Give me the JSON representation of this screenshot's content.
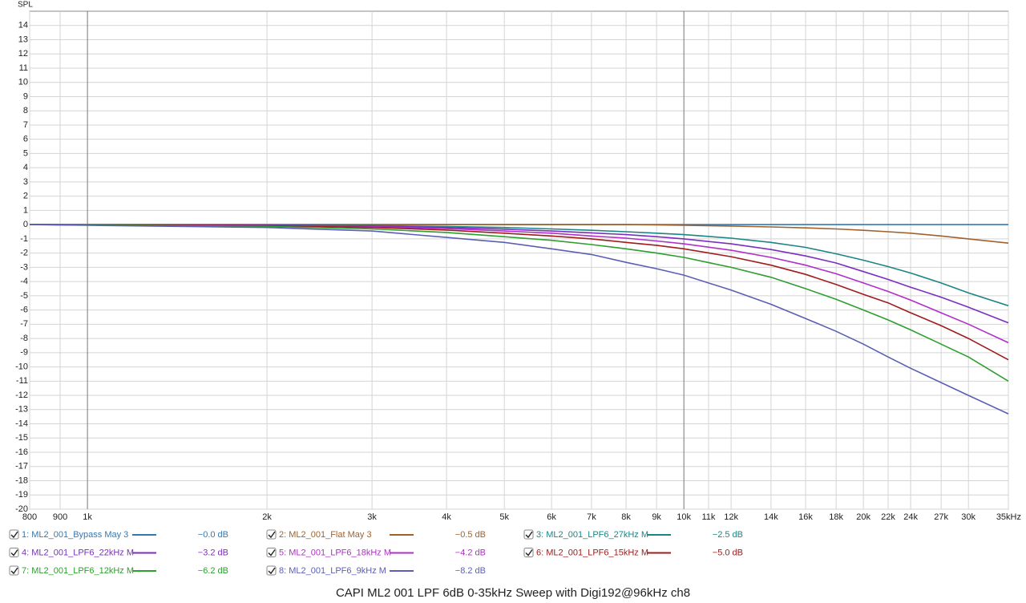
{
  "chart_data": {
    "type": "line",
    "title": "CAPI ML2 001 LPF 6dB 0-35kHz Sweep with Digi192@96kHz ch8",
    "y_label": "SPL",
    "x_scale": "log",
    "grid": true,
    "x": [
      800,
      1000,
      2000,
      3000,
      4000,
      5000,
      6000,
      7000,
      8000,
      9000,
      10000,
      12000,
      14000,
      16000,
      18000,
      20000,
      22000,
      24000,
      27000,
      30000,
      35000
    ],
    "xlim": [
      800,
      35000
    ],
    "ylim": [
      -20,
      15
    ],
    "xticks": [
      800,
      900,
      {
        "value": 1000,
        "label": "1k"
      },
      {
        "value": 2000,
        "label": "2k"
      },
      {
        "value": 3000,
        "label": "3k"
      },
      {
        "value": 4000,
        "label": "4k"
      },
      {
        "value": 5000,
        "label": "5k"
      },
      {
        "value": 6000,
        "label": "6k"
      },
      {
        "value": 7000,
        "label": "7k"
      },
      {
        "value": 8000,
        "label": "8k"
      },
      {
        "value": 9000,
        "label": "9k"
      },
      {
        "value": 10000,
        "label": "10k"
      },
      {
        "value": 11000,
        "label": "11k"
      },
      {
        "value": 12000,
        "label": "12k"
      },
      {
        "value": 14000,
        "label": "14k"
      },
      {
        "value": 16000,
        "label": "16k"
      },
      {
        "value": 18000,
        "label": "18k"
      },
      {
        "value": 20000,
        "label": "20k"
      },
      {
        "value": 22000,
        "label": "22k"
      },
      {
        "value": 24000,
        "label": "24k"
      },
      {
        "value": 27000,
        "label": "27k"
      },
      {
        "value": 30000,
        "label": "30k"
      },
      {
        "value": 35000,
        "label": "35kHz"
      }
    ],
    "yticks": [
      -20,
      -19,
      -18,
      -17,
      -16,
      -15,
      -14,
      -13,
      -12,
      -11,
      -10,
      -9,
      -8,
      -7,
      -6,
      -5,
      -4,
      -3,
      -2,
      -1,
      0,
      1,
      2,
      3,
      4,
      5,
      6,
      7,
      8,
      9,
      10,
      11,
      12,
      13,
      14
    ],
    "series": [
      {
        "name": "1: ML2_001_Bypass May 3",
        "readout": "−0.0 dB",
        "color": "#3478b0",
        "values": [
          0,
          0,
          0,
          0,
          0,
          0,
          0,
          0,
          0,
          0,
          0,
          0,
          0,
          0,
          0,
          0,
          0,
          0,
          0,
          0,
          0
        ]
      },
      {
        "name": "2: ML2_001_Flat May 3",
        "readout": "−0.5 dB",
        "color": "#a0622d",
        "values": [
          0,
          0,
          0,
          0,
          0,
          0,
          0,
          0,
          0,
          -0.02,
          -0.05,
          -0.1,
          -0.16,
          -0.23,
          -0.3,
          -0.4,
          -0.5,
          -0.6,
          -0.8,
          -1.0,
          -1.3
        ]
      },
      {
        "name": "3: ML2_001_LPF6_27kHz M",
        "readout": "−2.5 dB",
        "color": "#1b8585",
        "values": [
          0,
          -0.01,
          -0.03,
          -0.07,
          -0.13,
          -0.2,
          -0.3,
          -0.4,
          -0.5,
          -0.6,
          -0.7,
          -0.95,
          -1.25,
          -1.6,
          -2.05,
          -2.5,
          -2.95,
          -3.4,
          -4.1,
          -4.8,
          -5.7
        ]
      },
      {
        "name": "4: ML2_001_LPF6_22kHz M",
        "readout": "−3.2 dB",
        "color": "#7a2fbf",
        "values": [
          0,
          -0.01,
          -0.05,
          -0.1,
          -0.2,
          -0.32,
          -0.45,
          -0.58,
          -0.7,
          -0.85,
          -1.0,
          -1.35,
          -1.75,
          -2.2,
          -2.7,
          -3.3,
          -3.85,
          -4.4,
          -5.1,
          -5.8,
          -6.9
        ]
      },
      {
        "name": "5: ML2_001_LPF6_18kHz M",
        "readout": "−4.2 dB",
        "color": "#b02fc8",
        "values": [
          0,
          -0.02,
          -0.06,
          -0.15,
          -0.28,
          -0.45,
          -0.6,
          -0.8,
          -0.95,
          -1.15,
          -1.35,
          -1.8,
          -2.3,
          -2.85,
          -3.45,
          -4.1,
          -4.7,
          -5.3,
          -6.2,
          -7.0,
          -8.3
        ]
      },
      {
        "name": "6: ML2_001_LPF6_15kHz M",
        "readout": "−5.0 dB",
        "color": "#a01c1c",
        "values": [
          0,
          -0.02,
          -0.08,
          -0.2,
          -0.38,
          -0.6,
          -0.8,
          -1.0,
          -1.25,
          -1.45,
          -1.7,
          -2.25,
          -2.85,
          -3.5,
          -4.2,
          -4.9,
          -5.5,
          -6.2,
          -7.1,
          -8.0,
          -9.5
        ]
      },
      {
        "name": "7: ML2_001_LPF6_12kHz M",
        "readout": "−6.2 dB",
        "color": "#2e9e2e",
        "values": [
          0,
          -0.03,
          -0.12,
          -0.3,
          -0.55,
          -0.85,
          -1.1,
          -1.4,
          -1.7,
          -2.0,
          -2.3,
          -3.0,
          -3.7,
          -4.5,
          -5.25,
          -6.0,
          -6.7,
          -7.4,
          -8.4,
          -9.3,
          -11.0
        ]
      },
      {
        "name": "8: ML2_001_LPF6_9kHz M",
        "readout": "−8.2 dB",
        "color": "#5a5fb5",
        "values": [
          0,
          -0.05,
          -0.2,
          -0.45,
          -0.9,
          -1.25,
          -1.7,
          -2.1,
          -2.65,
          -3.1,
          -3.55,
          -4.6,
          -5.6,
          -6.6,
          -7.5,
          -8.4,
          -9.3,
          -10.1,
          -11.1,
          -12.0,
          -13.3
        ]
      }
    ]
  }
}
